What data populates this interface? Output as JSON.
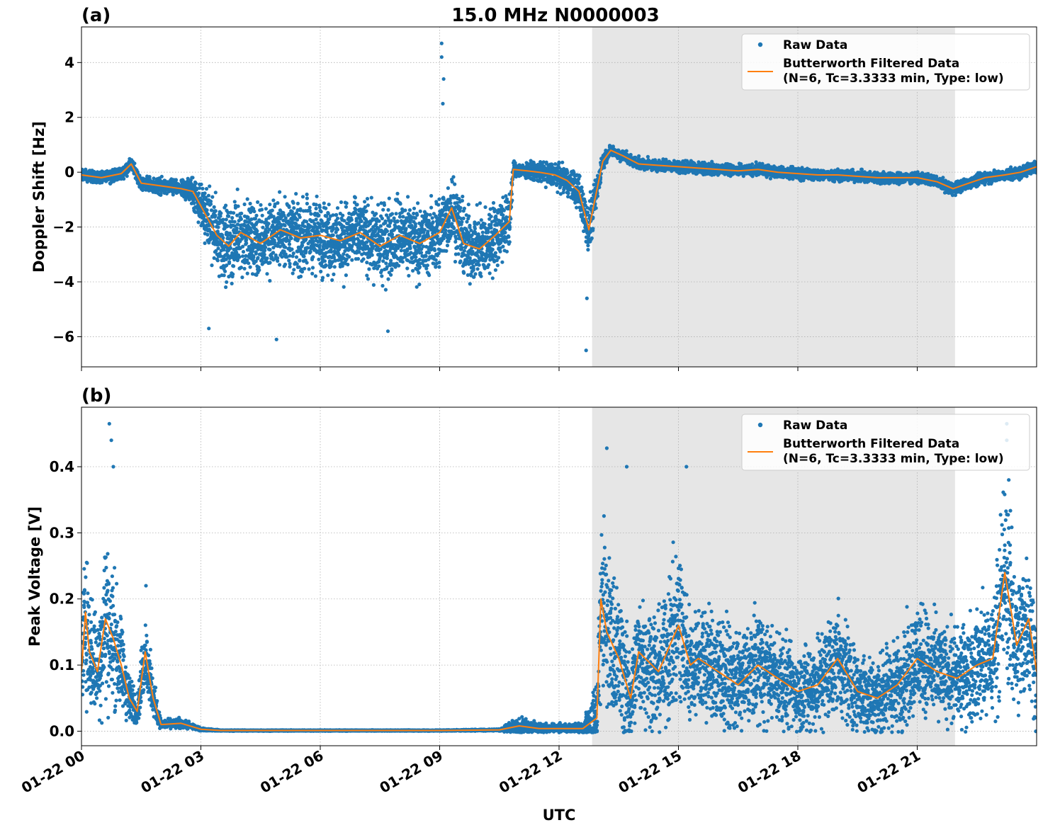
{
  "figure": {
    "title": "15.0 MHz N0000003",
    "xlabel": "UTC"
  },
  "colors": {
    "raw": "#1f77b4",
    "filtered": "#ff7f0e",
    "shade": "#e6e6e6",
    "grid": "#b0b0b0"
  },
  "chart_data": [
    {
      "type": "scatter",
      "panel_label": "(a)",
      "ylabel": "Doppler Shift [Hz]",
      "ylim": [
        -7.1,
        5.3
      ],
      "yticks": [
        4,
        2,
        0,
        -2,
        -4,
        -6
      ],
      "ytick_labels": [
        "4",
        "2",
        "0",
        "−2",
        "−4",
        "−6"
      ],
      "xlim_hours": [
        0,
        24
      ],
      "shaded_interval_hours": [
        12.83,
        21.95
      ],
      "grid": true,
      "legend": {
        "placement": "top-right",
        "entries": [
          {
            "label": "Raw Data",
            "marker": "dot"
          },
          {
            "label": "Butterworth Filtered Data",
            "label2": "(N=6, Tc=3.3333 min, Type: low)",
            "marker": "line"
          }
        ]
      },
      "series": [
        {
          "name": "Butterworth Filtered Data",
          "x_hours": [
            0,
            0.5,
            1.0,
            1.25,
            1.5,
            2.0,
            2.5,
            2.8,
            3.1,
            3.4,
            3.7,
            4.0,
            4.5,
            5.0,
            5.5,
            6.0,
            6.5,
            7.0,
            7.5,
            8.0,
            8.5,
            9.0,
            9.3,
            9.6,
            10.0,
            10.4,
            10.75,
            10.85,
            11.2,
            11.5,
            11.9,
            12.2,
            12.5,
            12.75,
            12.9,
            13.1,
            13.3,
            13.6,
            14.0,
            14.5,
            15.0,
            15.5,
            16.0,
            16.5,
            17.0,
            17.5,
            18.0,
            18.5,
            19.0,
            19.5,
            20.0,
            20.5,
            21.0,
            21.5,
            21.9,
            22.3,
            22.7,
            23.2,
            23.6,
            24.0
          ],
          "values": [
            -0.1,
            -0.2,
            -0.05,
            0.3,
            -0.4,
            -0.5,
            -0.6,
            -0.7,
            -1.5,
            -2.3,
            -2.7,
            -2.2,
            -2.6,
            -2.1,
            -2.4,
            -2.3,
            -2.5,
            -2.2,
            -2.7,
            -2.3,
            -2.6,
            -2.2,
            -1.3,
            -2.6,
            -2.8,
            -2.3,
            -1.8,
            0.1,
            0.05,
            0.0,
            -0.1,
            -0.3,
            -0.7,
            -2.1,
            -1.0,
            0.4,
            0.8,
            0.6,
            0.3,
            0.25,
            0.2,
            0.15,
            0.1,
            0.05,
            0.1,
            0.0,
            -0.05,
            -0.1,
            -0.1,
            -0.15,
            -0.2,
            -0.2,
            -0.2,
            -0.35,
            -0.6,
            -0.4,
            -0.2,
            -0.1,
            0.0,
            0.2
          ]
        },
        {
          "name": "Raw Data",
          "x_hours": [
            0,
            0.5,
            1.0,
            1.25,
            1.5,
            2.0,
            2.5,
            2.8,
            3.1,
            3.4,
            3.7,
            4.0,
            4.5,
            5.0,
            5.5,
            6.0,
            6.5,
            7.0,
            7.5,
            8.0,
            8.5,
            9.0,
            9.3,
            9.6,
            10.0,
            10.4,
            10.75,
            10.85,
            11.2,
            11.5,
            11.9,
            12.2,
            12.5,
            12.75,
            12.9,
            13.1,
            13.3,
            13.6,
            14.0,
            14.5,
            15.0,
            15.5,
            16.0,
            16.5,
            17.0,
            17.5,
            18.0,
            18.5,
            19.0,
            19.5,
            20.0,
            20.5,
            21.0,
            21.5,
            21.9,
            22.3,
            22.7,
            23.2,
            23.6,
            24.0
          ],
          "spread": [
            0.3,
            0.3,
            0.35,
            0.3,
            0.35,
            0.4,
            0.4,
            0.8,
            1.3,
            1.8,
            1.9,
            1.9,
            1.9,
            1.9,
            1.9,
            1.9,
            1.9,
            1.9,
            1.9,
            1.9,
            1.9,
            1.9,
            1.9,
            1.9,
            1.8,
            1.7,
            1.6,
            0.4,
            0.4,
            0.5,
            0.6,
            0.7,
            0.9,
            1.4,
            0.9,
            0.4,
            0.3,
            0.3,
            0.3,
            0.3,
            0.3,
            0.3,
            0.3,
            0.3,
            0.3,
            0.3,
            0.3,
            0.3,
            0.3,
            0.3,
            0.3,
            0.3,
            0.3,
            0.3,
            0.3,
            0.3,
            0.3,
            0.3,
            0.3,
            0.3
          ],
          "outliers": [
            [
              9.05,
              4.7
            ],
            [
              9.05,
              4.2
            ],
            [
              9.1,
              3.4
            ],
            [
              9.08,
              2.5
            ],
            [
              12.68,
              -6.5
            ],
            [
              4.9,
              -6.1
            ],
            [
              3.2,
              -5.7
            ],
            [
              12.7,
              -4.6
            ],
            [
              7.7,
              -5.8
            ]
          ]
        }
      ]
    },
    {
      "type": "scatter",
      "panel_label": "(b)",
      "ylabel": "Peak Voltage [V]",
      "ylim": [
        -0.022,
        0.49
      ],
      "yticks": [
        0.4,
        0.3,
        0.2,
        0.1,
        0.0
      ],
      "ytick_labels": [
        "0.4",
        "0.3",
        "0.2",
        "0.1",
        "0.0"
      ],
      "xlim_hours": [
        0,
        24
      ],
      "shaded_interval_hours": [
        12.83,
        21.95
      ],
      "grid": true,
      "legend": {
        "placement": "top-right",
        "entries": [
          {
            "label": "Raw Data",
            "marker": "dot"
          },
          {
            "label": "Butterworth Filtered Data",
            "label2": "(N=6, Tc=3.3333 min, Type: low)",
            "marker": "line"
          }
        ]
      },
      "series": [
        {
          "name": "Butterworth Filtered Data",
          "x_hours": [
            0,
            0.1,
            0.2,
            0.4,
            0.6,
            0.8,
            1.0,
            1.2,
            1.4,
            1.6,
            1.8,
            2.0,
            2.5,
            3.0,
            3.5,
            5.0,
            7.0,
            9.0,
            10.5,
            11.0,
            11.5,
            12.0,
            12.6,
            12.95,
            13.05,
            13.2,
            13.5,
            13.8,
            14.0,
            14.5,
            15.0,
            15.3,
            15.5,
            16.0,
            16.5,
            17.0,
            17.5,
            18.0,
            18.5,
            19.0,
            19.5,
            20.0,
            20.5,
            21.0,
            21.5,
            22.0,
            22.5,
            22.9,
            23.2,
            23.5,
            23.8,
            24.0
          ],
          "values": [
            0.09,
            0.18,
            0.12,
            0.09,
            0.17,
            0.14,
            0.1,
            0.05,
            0.03,
            0.12,
            0.05,
            0.01,
            0.012,
            0.003,
            0.001,
            0.001,
            0.001,
            0.001,
            0.002,
            0.008,
            0.004,
            0.004,
            0.004,
            0.02,
            0.2,
            0.15,
            0.11,
            0.05,
            0.12,
            0.09,
            0.16,
            0.1,
            0.11,
            0.09,
            0.07,
            0.1,
            0.08,
            0.06,
            0.07,
            0.11,
            0.06,
            0.05,
            0.07,
            0.11,
            0.09,
            0.08,
            0.1,
            0.11,
            0.24,
            0.13,
            0.17,
            0.09
          ]
        },
        {
          "name": "Raw Data",
          "x_hours": [
            0,
            0.1,
            0.2,
            0.4,
            0.6,
            0.8,
            1.0,
            1.2,
            1.4,
            1.6,
            1.8,
            2.0,
            2.5,
            3.0,
            3.5,
            5.0,
            7.0,
            9.0,
            10.5,
            11.0,
            11.5,
            12.0,
            12.6,
            12.95,
            13.05,
            13.2,
            13.5,
            13.8,
            14.0,
            14.5,
            15.0,
            15.3,
            15.5,
            16.0,
            16.5,
            17.0,
            17.5,
            18.0,
            18.5,
            19.0,
            19.5,
            20.0,
            20.5,
            21.0,
            21.5,
            22.0,
            22.5,
            22.9,
            23.2,
            23.5,
            23.8,
            24.0
          ],
          "spread": [
            0.1,
            0.17,
            0.12,
            0.1,
            0.2,
            0.15,
            0.1,
            0.05,
            0.03,
            0.08,
            0.05,
            0.008,
            0.012,
            0.003,
            0.001,
            0.001,
            0.001,
            0.001,
            0.002,
            0.02,
            0.01,
            0.01,
            0.01,
            0.08,
            0.2,
            0.18,
            0.16,
            0.1,
            0.14,
            0.12,
            0.18,
            0.12,
            0.12,
            0.12,
            0.1,
            0.12,
            0.1,
            0.09,
            0.1,
            0.12,
            0.09,
            0.08,
            0.1,
            0.12,
            0.11,
            0.1,
            0.12,
            0.14,
            0.2,
            0.15,
            0.16,
            0.12
          ],
          "outliers": [
            [
              0.7,
              0.465
            ],
            [
              0.75,
              0.44
            ],
            [
              0.8,
              0.4
            ],
            [
              13.2,
              0.428
            ],
            [
              15.2,
              0.4
            ],
            [
              23.25,
              0.465
            ],
            [
              23.25,
              0.44
            ],
            [
              23.3,
              0.38
            ],
            [
              1.62,
              0.22
            ],
            [
              13.7,
              0.4
            ]
          ]
        }
      ]
    }
  ],
  "x_axis": {
    "tick_hours": [
      0,
      3,
      6,
      9,
      12,
      15,
      18,
      21
    ],
    "tick_labels": [
      "01-22 00",
      "01-22 03",
      "01-22 06",
      "01-22 09",
      "01-22 12",
      "01-22 15",
      "01-22 18",
      "01-22 21"
    ]
  }
}
